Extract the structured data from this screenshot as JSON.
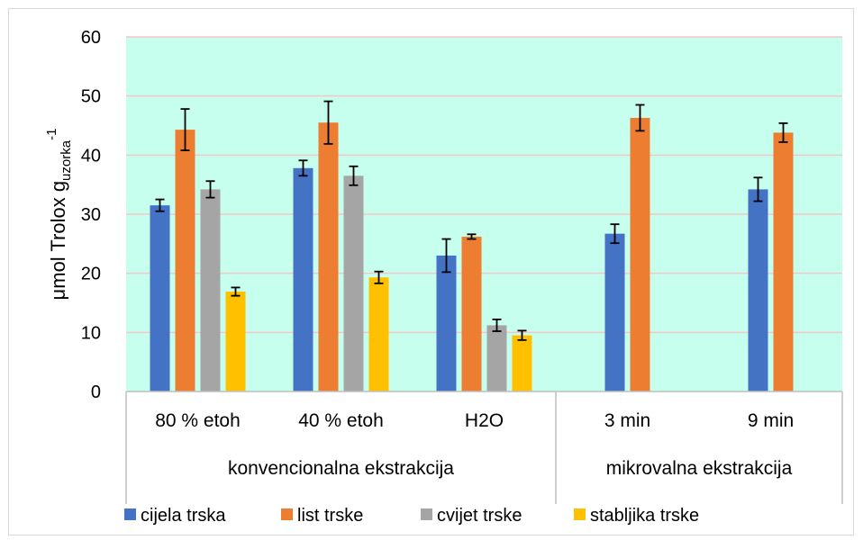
{
  "chart_data": {
    "type": "bar",
    "categories": [
      "80 % etoh",
      "40 % etoh",
      "H2O",
      "3 min",
      "9 min"
    ],
    "groups": [
      {
        "label": "konvencionalna ekstrakcija",
        "categories": [
          "80 % etoh",
          "40 % etoh",
          "H2O"
        ]
      },
      {
        "label": "mikrovalna ekstrakcija",
        "categories": [
          "3 min",
          "9 min"
        ]
      }
    ],
    "series": [
      {
        "name": "cijela trska",
        "color": "#4472C4",
        "values": [
          31.5,
          37.8,
          23.0,
          26.7,
          34.2
        ],
        "errors": [
          1.0,
          1.3,
          2.8,
          1.6,
          2.0
        ]
      },
      {
        "name": "list trske",
        "color": "#ED7D31",
        "values": [
          44.3,
          45.5,
          26.2,
          46.3,
          43.8
        ],
        "errors": [
          3.5,
          3.6,
          0.4,
          2.2,
          1.6
        ]
      },
      {
        "name": "cvijet trske",
        "color": "#A5A5A5",
        "values": [
          34.2,
          36.5,
          11.2,
          0,
          0
        ],
        "errors": [
          1.4,
          1.6,
          1.0,
          0,
          0
        ]
      },
      {
        "name": "stabljika trske",
        "color": "#FFC000",
        "values": [
          16.9,
          19.3,
          9.5,
          0,
          0
        ],
        "errors": [
          0.7,
          1.0,
          0.8,
          0,
          0
        ]
      }
    ],
    "ylabel_main": "μmol Trolox g",
    "ylabel_sub": "uzorka",
    "ylabel_sup": "-1",
    "ylim": [
      0,
      60
    ],
    "yticks": [
      0,
      10,
      20,
      30,
      40,
      50,
      60
    ],
    "plot_background": "#C6FFEE",
    "gridline_color": "#F4C7C7",
    "grid": true,
    "legend_position": "bottom"
  }
}
